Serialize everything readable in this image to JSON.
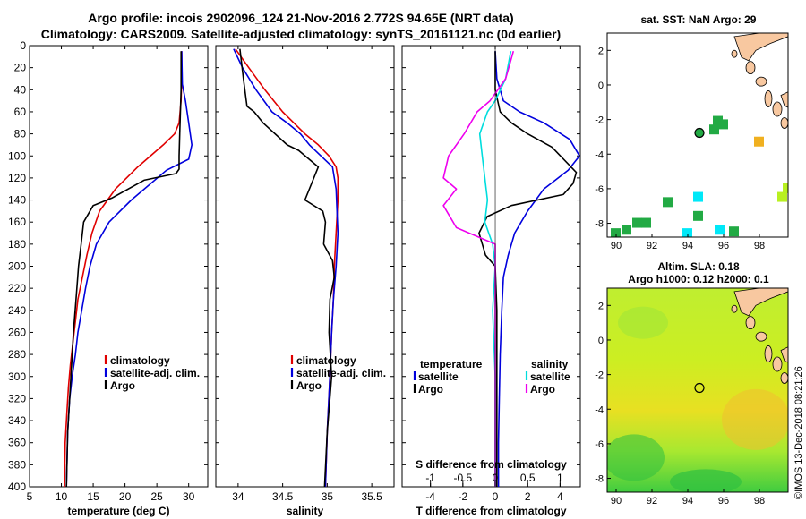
{
  "header": {
    "title_line1": "Argo profile: incois 2902096_124 21-Nov-2016 2.772S 94.65E (NRT data)",
    "title_line2": "Climatology: CARS2009. Satellite-adjusted climatology: synTS_20161121.nc (0d earlier)"
  },
  "watermark": "©IMOS 13-Dec-2018 08:21:26",
  "colors": {
    "climatology": "#e00000",
    "satellite": "#0000dd",
    "argo": "#000000",
    "sal_satellite": "#00dddd",
    "sal_argo": "#ee00ee"
  },
  "chart_data": [
    {
      "type": "line",
      "id": "temperature",
      "xlabel": "temperature (deg C)",
      "ylabel": "",
      "xlim": [
        5,
        33
      ],
      "ylim": [
        400,
        0
      ],
      "xticks": [
        5,
        10,
        15,
        20,
        25,
        30
      ],
      "yticks": [
        0,
        20,
        40,
        60,
        80,
        100,
        120,
        140,
        160,
        180,
        200,
        220,
        240,
        260,
        280,
        300,
        320,
        340,
        360,
        380,
        400
      ],
      "legend": [
        "climatology",
        "satellite-adj. clim.",
        "Argo"
      ],
      "series": [
        {
          "name": "climatology",
          "color": "#e00000",
          "x": [
            28.9,
            28.9,
            28.8,
            28.5,
            27.8,
            26.0,
            22.0,
            18.5,
            16.0,
            14.8,
            14.0,
            13.3,
            12.6,
            12.2,
            11.8,
            11.4,
            11.1,
            10.9,
            10.6,
            10.5
          ],
          "y": [
            5,
            30,
            50,
            70,
            80,
            90,
            110,
            130,
            150,
            170,
            190,
            210,
            230,
            250,
            270,
            290,
            310,
            330,
            360,
            400
          ]
        },
        {
          "name": "satellite-adj. clim.",
          "color": "#0000dd",
          "x": [
            28.9,
            29.0,
            29.5,
            30.0,
            30.5,
            30.0,
            26.5,
            21.0,
            17.5,
            15.5,
            14.5,
            13.8,
            13.2,
            12.6,
            12.2,
            11.7,
            11.3,
            11.0,
            10.8
          ],
          "y": [
            5,
            35,
            50,
            70,
            90,
            103,
            113,
            140,
            160,
            180,
            200,
            220,
            240,
            260,
            280,
            300,
            320,
            350,
            400
          ]
        },
        {
          "name": "Argo",
          "color": "#000000",
          "x": [
            28.8,
            28.8,
            28.6,
            28.5,
            28.5,
            28.0,
            23.0,
            18.0,
            15.0,
            13.5,
            13.1,
            12.7,
            12.3,
            11.9,
            11.6,
            11.3,
            11.0,
            10.8
          ],
          "y": [
            5,
            40,
            80,
            100,
            112,
            116,
            122,
            138,
            145,
            160,
            180,
            200,
            230,
            260,
            290,
            320,
            350,
            400
          ]
        }
      ]
    },
    {
      "type": "line",
      "id": "salinity",
      "xlabel": "salinity",
      "ylabel": "",
      "xlim": [
        33.75,
        35.75
      ],
      "ylim": [
        400,
        0
      ],
      "xticks": [
        34,
        34.5,
        35,
        35.5
      ],
      "legend": [
        "climatology",
        "satellite-adj. clim.",
        "Argo"
      ],
      "series": [
        {
          "name": "climatology",
          "color": "#e00000",
          "x": [
            33.97,
            34.12,
            34.3,
            34.5,
            34.75,
            34.9,
            35.02,
            35.1,
            35.12,
            35.12,
            35.1,
            35.08,
            35.07,
            35.05,
            35.03,
            35.0,
            34.98
          ],
          "y": [
            3,
            20,
            40,
            60,
            80,
            90,
            100,
            110,
            120,
            140,
            170,
            200,
            230,
            260,
            300,
            350,
            400
          ]
        },
        {
          "name": "satellite-adj. clim.",
          "color": "#0000dd",
          "x": [
            33.95,
            34.05,
            34.2,
            34.38,
            34.55,
            34.7,
            34.8,
            34.93,
            35.06,
            35.1,
            35.12,
            35.1,
            35.07,
            35.05,
            35.03,
            35.0,
            34.98
          ],
          "y": [
            3,
            20,
            40,
            60,
            70,
            80,
            90,
            100,
            110,
            130,
            170,
            200,
            230,
            260,
            300,
            350,
            400
          ]
        },
        {
          "name": "Argo",
          "color": "#000000",
          "x": [
            34.02,
            34.06,
            34.1,
            34.18,
            34.28,
            34.55,
            34.68,
            34.9,
            34.75,
            34.95,
            34.98,
            34.96,
            35.06,
            35.08,
            35.03,
            35.02,
            35.05,
            35.0,
            34.97
          ],
          "y": [
            3,
            30,
            55,
            60,
            70,
            90,
            95,
            110,
            140,
            150,
            160,
            180,
            195,
            210,
            230,
            260,
            300,
            350,
            400
          ]
        }
      ]
    },
    {
      "type": "line",
      "id": "difference",
      "xlabel": "T difference from climatology",
      "xlabel2": "S difference from climatology",
      "xlim": [
        -5.75,
        5.25
      ],
      "ylim": [
        400,
        0
      ],
      "xticks": [
        -4,
        -2,
        0,
        2,
        4
      ],
      "sal_xlim": [
        -1.4375,
        1.3125
      ],
      "sal_xticks": [
        -1,
        -0.5,
        0,
        0.5,
        1
      ],
      "legend_temperature": {
        "title": "temperature",
        "items": [
          "satellite",
          "Argo"
        ]
      },
      "legend_salinity": {
        "title": "salinity",
        "items": [
          "satellite",
          "Argo"
        ]
      },
      "series": [
        {
          "name": "T satellite",
          "color": "#0000dd",
          "x": [
            0,
            0.1,
            0.5,
            1.5,
            3.0,
            4.6,
            5.2,
            4.5,
            3.0,
            2.0,
            1.2,
            0.8,
            0.5,
            0.4,
            0.3,
            0.25,
            0.2,
            0.2
          ],
          "y": [
            5,
            30,
            50,
            60,
            70,
            85,
            100,
            113,
            130,
            150,
            170,
            190,
            210,
            240,
            280,
            320,
            360,
            400
          ]
        },
        {
          "name": "T Argo",
          "color": "#000000",
          "x": [
            0,
            0,
            0.3,
            1.0,
            2.0,
            3.5,
            5.0,
            4.8,
            4.2,
            1.0,
            -0.5,
            -1.0,
            -0.6,
            0,
            0.1,
            0.1,
            0.1,
            0.1
          ],
          "y": [
            5,
            40,
            60,
            70,
            80,
            92,
            115,
            125,
            135,
            145,
            155,
            170,
            190,
            200,
            240,
            280,
            340,
            400
          ]
        },
        {
          "name": "S satellite",
          "color": "#00dddd",
          "x": [
            0.24,
            0.16,
            0.0,
            -0.12,
            -0.24,
            -0.2,
            -0.16,
            -0.12,
            -0.16,
            -0.04,
            0.0,
            -0.04,
            0.0,
            0.0
          ],
          "y": [
            5,
            30,
            50,
            60,
            80,
            100,
            120,
            140,
            160,
            180,
            200,
            240,
            300,
            400
          ]
        },
        {
          "name": "S Argo",
          "color": "#ee00ee",
          "x": [
            0.28,
            0.16,
            -0.08,
            -0.28,
            -0.48,
            -0.72,
            -0.8,
            -0.6,
            -0.8,
            -0.6,
            0.0,
            0.0,
            0.0
          ],
          "y": [
            5,
            30,
            50,
            60,
            80,
            100,
            120,
            130,
            145,
            165,
            180,
            250,
            400
          ]
        }
      ]
    },
    {
      "type": "heatmap",
      "id": "sst-map",
      "title": "sat. SST: NaN Argo: 29",
      "xlim": [
        89.5,
        99.6
      ],
      "ylim": [
        -8.8,
        3.0
      ],
      "xticks": [
        90,
        92,
        94,
        96,
        98
      ],
      "yticks": [
        2,
        0,
        -2,
        -4,
        -6,
        -8
      ],
      "float_lon": 94.65,
      "float_lat": -2.772,
      "cells": [
        {
          "lon": 95.7,
          "lat": -2.1,
          "color": "#22aa44"
        },
        {
          "lon": 95.5,
          "lat": -2.6,
          "color": "#22aa44"
        },
        {
          "lon": 96.0,
          "lat": -2.3,
          "color": "#22aa44"
        },
        {
          "lon": 98.0,
          "lat": -3.3,
          "color": "#f0b020"
        },
        {
          "lon": 92.9,
          "lat": -6.8,
          "color": "#22aa44"
        },
        {
          "lon": 94.6,
          "lat": -6.5,
          "color": "#00e8f8"
        },
        {
          "lon": 94.6,
          "lat": -7.6,
          "color": "#22aa44"
        },
        {
          "lon": 91.7,
          "lat": -8.0,
          "color": "#22aa44"
        },
        {
          "lon": 91.2,
          "lat": -8.0,
          "color": "#22aa44"
        },
        {
          "lon": 90.6,
          "lat": -8.4,
          "color": "#22aa44"
        },
        {
          "lon": 90.0,
          "lat": -8.6,
          "color": "#22aa44"
        },
        {
          "lon": 94.0,
          "lat": -8.6,
          "color": "#00e8f8"
        },
        {
          "lon": 95.8,
          "lat": -8.4,
          "color": "#00e8f8"
        },
        {
          "lon": 96.6,
          "lat": -8.5,
          "color": "#22aa44"
        },
        {
          "lon": 99.3,
          "lat": -6.5,
          "color": "#b8f020"
        },
        {
          "lon": 99.6,
          "lat": -6.0,
          "color": "#b8f020"
        }
      ]
    },
    {
      "type": "heatmap",
      "id": "sla-map",
      "title": "Altim. SLA: 0.18",
      "subtitle": "Argo h1000: 0.12 h2000: 0.1",
      "xlim": [
        89.5,
        99.6
      ],
      "ylim": [
        -8.8,
        3.0
      ],
      "xticks": [
        90,
        92,
        94,
        96,
        98
      ],
      "yticks": [
        2,
        0,
        -2,
        -4,
        -6,
        -8
      ],
      "float_lon": 94.65,
      "float_lat": -2.772
    }
  ]
}
